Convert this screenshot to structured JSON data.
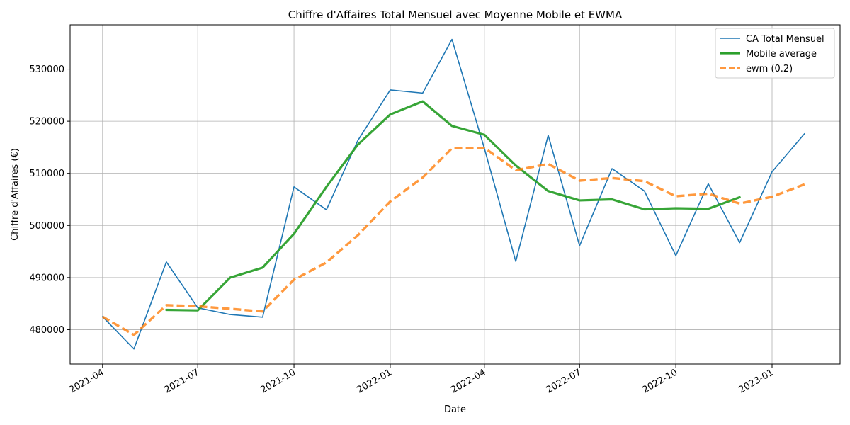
{
  "chart_data": {
    "type": "line",
    "title": "Chiffre d'Affaires Total Mensuel avec Moyenne Mobile et EWMA",
    "xlabel": "Date",
    "ylabel": "Chiffre d'Affaires (€)",
    "x_tick_labels": [
      "2021-04",
      "2021-07",
      "2021-10",
      "2022-01",
      "2022-04",
      "2022-07",
      "2022-10",
      "2023-01"
    ],
    "y_tick_labels": [
      "480000",
      "490000",
      "500000",
      "510000",
      "520000",
      "530000"
    ],
    "y_ticks": [
      480000,
      490000,
      500000,
      510000,
      520000,
      530000
    ],
    "xlim": [
      "2021-03-01",
      "2023-03-07"
    ],
    "ylim": [
      473400,
      538500
    ],
    "grid": true,
    "legend_position": "top-right",
    "x": [
      "2021-04-01",
      "2021-05-01",
      "2021-06-01",
      "2021-07-01",
      "2021-08-01",
      "2021-09-01",
      "2021-10-01",
      "2021-11-01",
      "2021-12-01",
      "2022-01-01",
      "2022-02-01",
      "2022-03-01",
      "2022-04-01",
      "2022-05-01",
      "2022-06-01",
      "2022-07-01",
      "2022-08-01",
      "2022-09-01",
      "2022-10-01",
      "2022-11-01",
      "2022-12-01",
      "2023-01-01",
      "2023-02-01"
    ],
    "series": [
      {
        "name": "CA Total Mensuel",
        "color": "#1f77b4",
        "style": "solid",
        "values": [
          482500,
          476300,
          493000,
          484200,
          482900,
          482400,
          507400,
          503000,
          516300,
          526000,
          525400,
          535700,
          514800,
          493100,
          517300,
          496100,
          510900,
          506600,
          494200,
          508000,
          496700,
          510300,
          517600
        ]
      },
      {
        "name": "Mobile average",
        "color": "#2ca02c",
        "style": "solid",
        "values": [
          null,
          null,
          483800,
          483700,
          490000,
          491900,
          498400,
          507400,
          515500,
          521300,
          523800,
          519100,
          517400,
          511500,
          506600,
          504800,
          505000,
          503100,
          503300,
          503200,
          505400,
          null,
          null
        ]
      },
      {
        "name": "ewm (0.2)",
        "color": "#ff7f0e",
        "style": "dashed",
        "values": [
          482500,
          479000,
          484700,
          484500,
          484000,
          483500,
          489600,
          492900,
          498100,
          504600,
          509200,
          514800,
          514900,
          510600,
          511800,
          508600,
          509100,
          508500,
          505600,
          506100,
          504200,
          505500,
          507900
        ]
      }
    ]
  }
}
